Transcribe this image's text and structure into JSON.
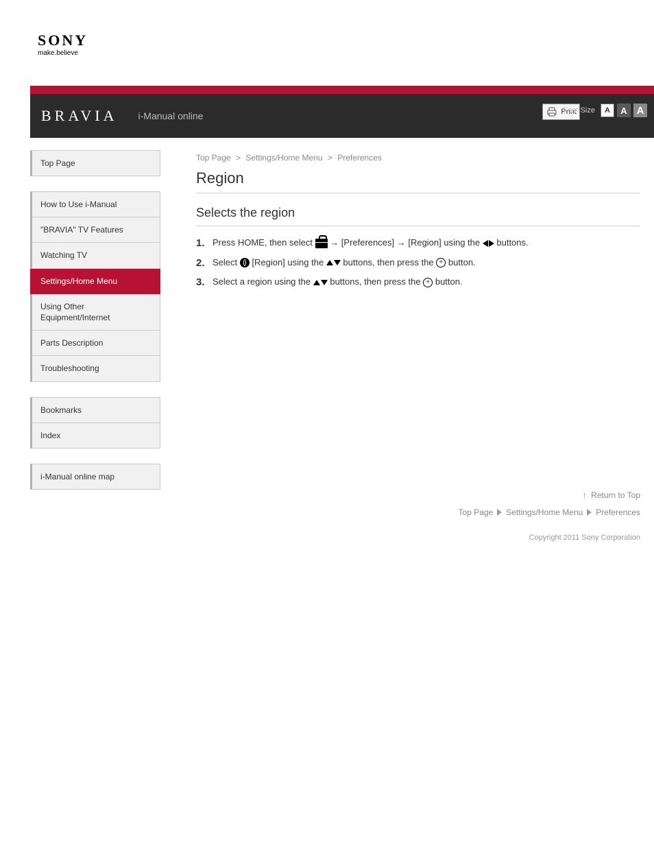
{
  "logo": {
    "brand": "SONY",
    "tagline": "make.believe"
  },
  "header": {
    "product": "BRAVIA",
    "guide_label": "i-Manual online",
    "print_label": "Print",
    "font_size_label": "Font Size",
    "font_a_small": "A",
    "font_a_mid": "A",
    "font_a_big": "A"
  },
  "sidebar": {
    "top": "Top Page",
    "main": [
      "How to Use i-Manual",
      "\"BRAVIA\" TV Features",
      "Watching TV",
      "Settings/Home Menu",
      "Using Other Equipment/Internet",
      "Parts Description",
      "Troubleshooting",
      "Bookmarks",
      "Index",
      "i-Manual online map"
    ],
    "active_index": 3
  },
  "content": {
    "breadcrumb_top": "Top Page",
    "breadcrumb_sep": ">",
    "breadcrumb_section": "Settings/Home Menu",
    "breadcrumb_sub": "Preferences",
    "page_title": "Region",
    "section_title": "Selects the region",
    "steps": [
      {
        "num": "1.",
        "pre": "Press HOME, then select ",
        "mid1": " → [Preferences] → [Region] using the ",
        "post": " buttons."
      },
      {
        "num": "2.",
        "pre": "Select ",
        "mid1": " [Region] using the ",
        "mid2": " buttons, then press the ",
        "post": " button."
      },
      {
        "num": "3.",
        "pre": "Select a region using the ",
        "mid1": " buttons, then press the ",
        "post": " button."
      }
    ]
  },
  "footer": {
    "return_top": "Return to Top",
    "breadcrumb_top": "Top Page",
    "breadcrumb_section": "Settings/Home Menu",
    "breadcrumb_sub": "Preferences",
    "copyright": "Copyright 2011 Sony Corporation"
  },
  "colors": {
    "brand_red": "#b71234",
    "dark_bar": "#2b2b2b",
    "nav_bg": "#f1f1f1",
    "nav_border": "#c9c9c9",
    "text": "#333333",
    "muted": "#888888"
  }
}
